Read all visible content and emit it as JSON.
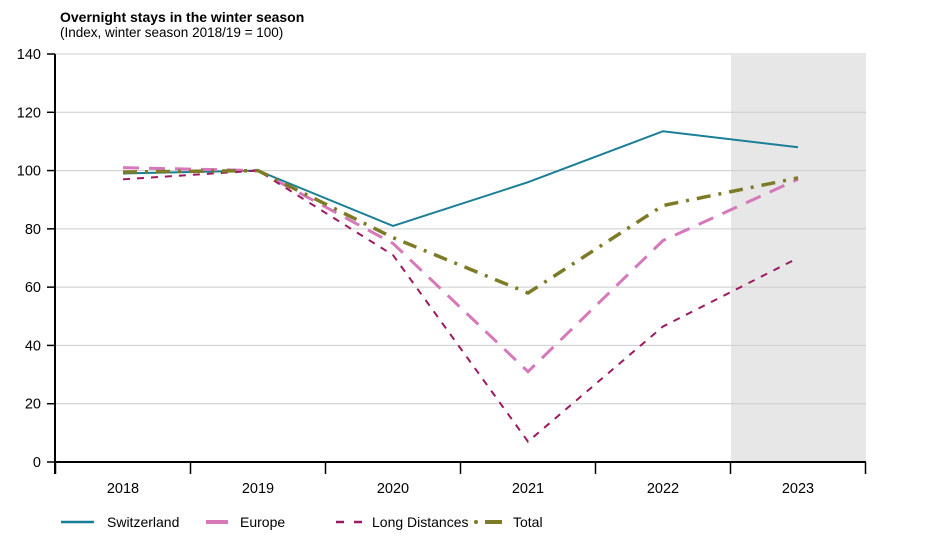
{
  "title": "Overnight stays in the winter season",
  "subtitle": "(Index, winter season 2018/19 = 100)",
  "chart_data": {
    "type": "line",
    "title": "Overnight stays in the winter season",
    "subtitle": "(Index, winter season 2018/19 = 100)",
    "categories": [
      "2018",
      "2019",
      "2020",
      "2021",
      "2022",
      "2023"
    ],
    "series": [
      {
        "name": "Switzerland",
        "color": "#1a7f96",
        "line_style": "solid",
        "values": [
          99,
          100,
          81,
          96,
          113.5,
          108
        ]
      },
      {
        "name": "Europe",
        "color": "#d678ba",
        "line_style": "long-dash",
        "values": [
          101,
          100,
          75,
          31,
          76,
          97
        ]
      },
      {
        "name": "Long Distances",
        "color": "#9c1a62",
        "line_style": "short-dash",
        "values": [
          97,
          100,
          71,
          7,
          46.5,
          70
        ]
      },
      {
        "name": "Total",
        "color": "#7d7a28",
        "line_style": "dash-dot",
        "values": [
          99.5,
          100,
          77,
          58,
          88,
          97.5
        ]
      }
    ],
    "xlabel": "",
    "ylabel": "",
    "ylim": [
      0,
      140
    ],
    "y_ticks": [
      0,
      20,
      40,
      60,
      80,
      100,
      120,
      140
    ],
    "grid": "horizontal",
    "legend_position": "bottom",
    "highlight_region": {
      "category": "2023",
      "color": "#e7e7e7"
    },
    "colors": {
      "axis": "#000000",
      "gridline": "#cccccc"
    }
  }
}
